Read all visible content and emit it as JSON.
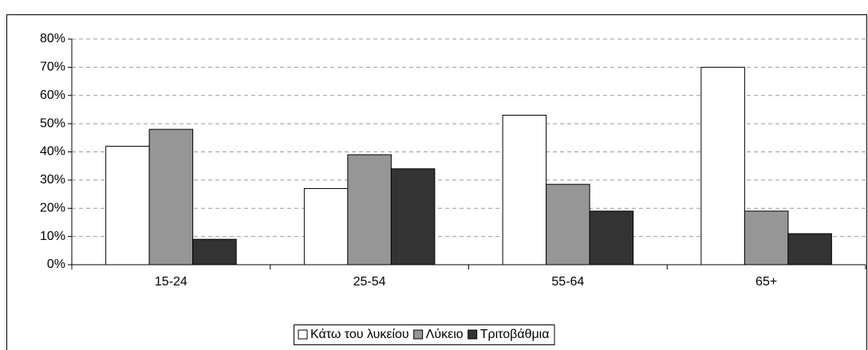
{
  "chart_data": {
    "type": "bar",
    "categories": [
      "15-24",
      "25-54",
      "55-64",
      "65+"
    ],
    "series": [
      {
        "name": "Κάτω του λυκείου",
        "color": "#ffffff",
        "values": [
          42,
          27,
          53,
          70
        ]
      },
      {
        "name": "Λύκειο",
        "color": "#969696",
        "values": [
          48,
          39,
          28.5,
          19
        ]
      },
      {
        "name": "Τριτοβάθμια",
        "color": "#333333",
        "values": [
          9,
          34,
          19,
          11
        ]
      }
    ],
    "ylim": [
      0,
      80
    ],
    "yticks": [
      {
        "value": 0,
        "label": "0%"
      },
      {
        "value": 10,
        "label": "10%"
      },
      {
        "value": 20,
        "label": "20%"
      },
      {
        "value": 30,
        "label": "30%"
      },
      {
        "value": 40,
        "label": "40%"
      },
      {
        "value": 50,
        "label": "50%"
      },
      {
        "value": 60,
        "label": "60%"
      },
      {
        "value": 70,
        "label": "70%"
      },
      {
        "value": 80,
        "label": "80%"
      }
    ],
    "grid": true,
    "legend": "bottom"
  }
}
